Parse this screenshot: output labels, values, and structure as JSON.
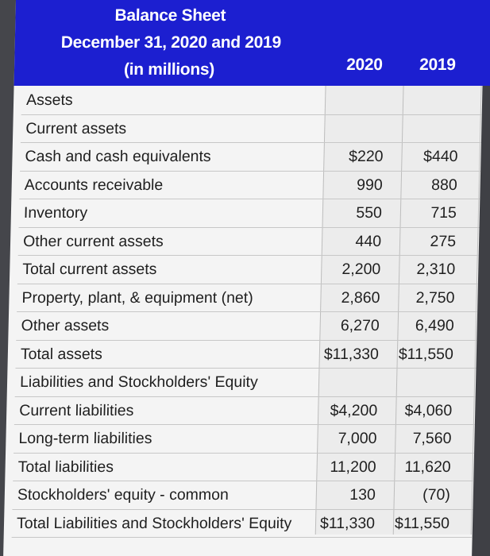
{
  "header": {
    "title": "Balance Sheet",
    "subtitle": "December 31, 2020 and 2019",
    "units": "(in millions)",
    "years": [
      "2020",
      "2019"
    ]
  },
  "rows": [
    {
      "label": "Assets",
      "v2020": "",
      "v2019": ""
    },
    {
      "label": "Current assets",
      "v2020": "",
      "v2019": ""
    },
    {
      "label": "Cash and cash equivalents",
      "v2020": "$220",
      "v2019": "$440"
    },
    {
      "label": "Accounts receivable",
      "v2020": "990",
      "v2019": "880"
    },
    {
      "label": "Inventory",
      "v2020": "550",
      "v2019": "715"
    },
    {
      "label": "Other current assets",
      "v2020": "440",
      "v2019": "275"
    },
    {
      "label": "Total current assets",
      "v2020": "2,200",
      "v2019": "2,310"
    },
    {
      "label": "Property, plant, & equipment (net)",
      "v2020": "2,860",
      "v2019": "2,750"
    },
    {
      "label": "Other assets",
      "v2020": "6,270",
      "v2019": "6,490"
    },
    {
      "label": "Total assets",
      "v2020": "$11,330",
      "v2019": "$11,550"
    },
    {
      "label": "Liabilities and Stockholders' Equity",
      "v2020": "",
      "v2019": ""
    },
    {
      "label": "Current liabilities",
      "v2020": "$4,200",
      "v2019": "$4,060"
    },
    {
      "label": "Long-term liabilities",
      "v2020": "7,000",
      "v2019": "7,560"
    },
    {
      "label": "Total liabilities",
      "v2020": "11,200",
      "v2019": "11,620"
    },
    {
      "label": "Stockholders' equity - common",
      "v2020": "130",
      "v2019": "(70)"
    },
    {
      "label": "Total Liabilities and Stockholders' Equity",
      "v2020": "$11,330",
      "v2019": "$11,550"
    }
  ],
  "colors": {
    "header": "#1c1fd0",
    "text": "#1f1f1f",
    "sheet": "#f4f4f4"
  }
}
